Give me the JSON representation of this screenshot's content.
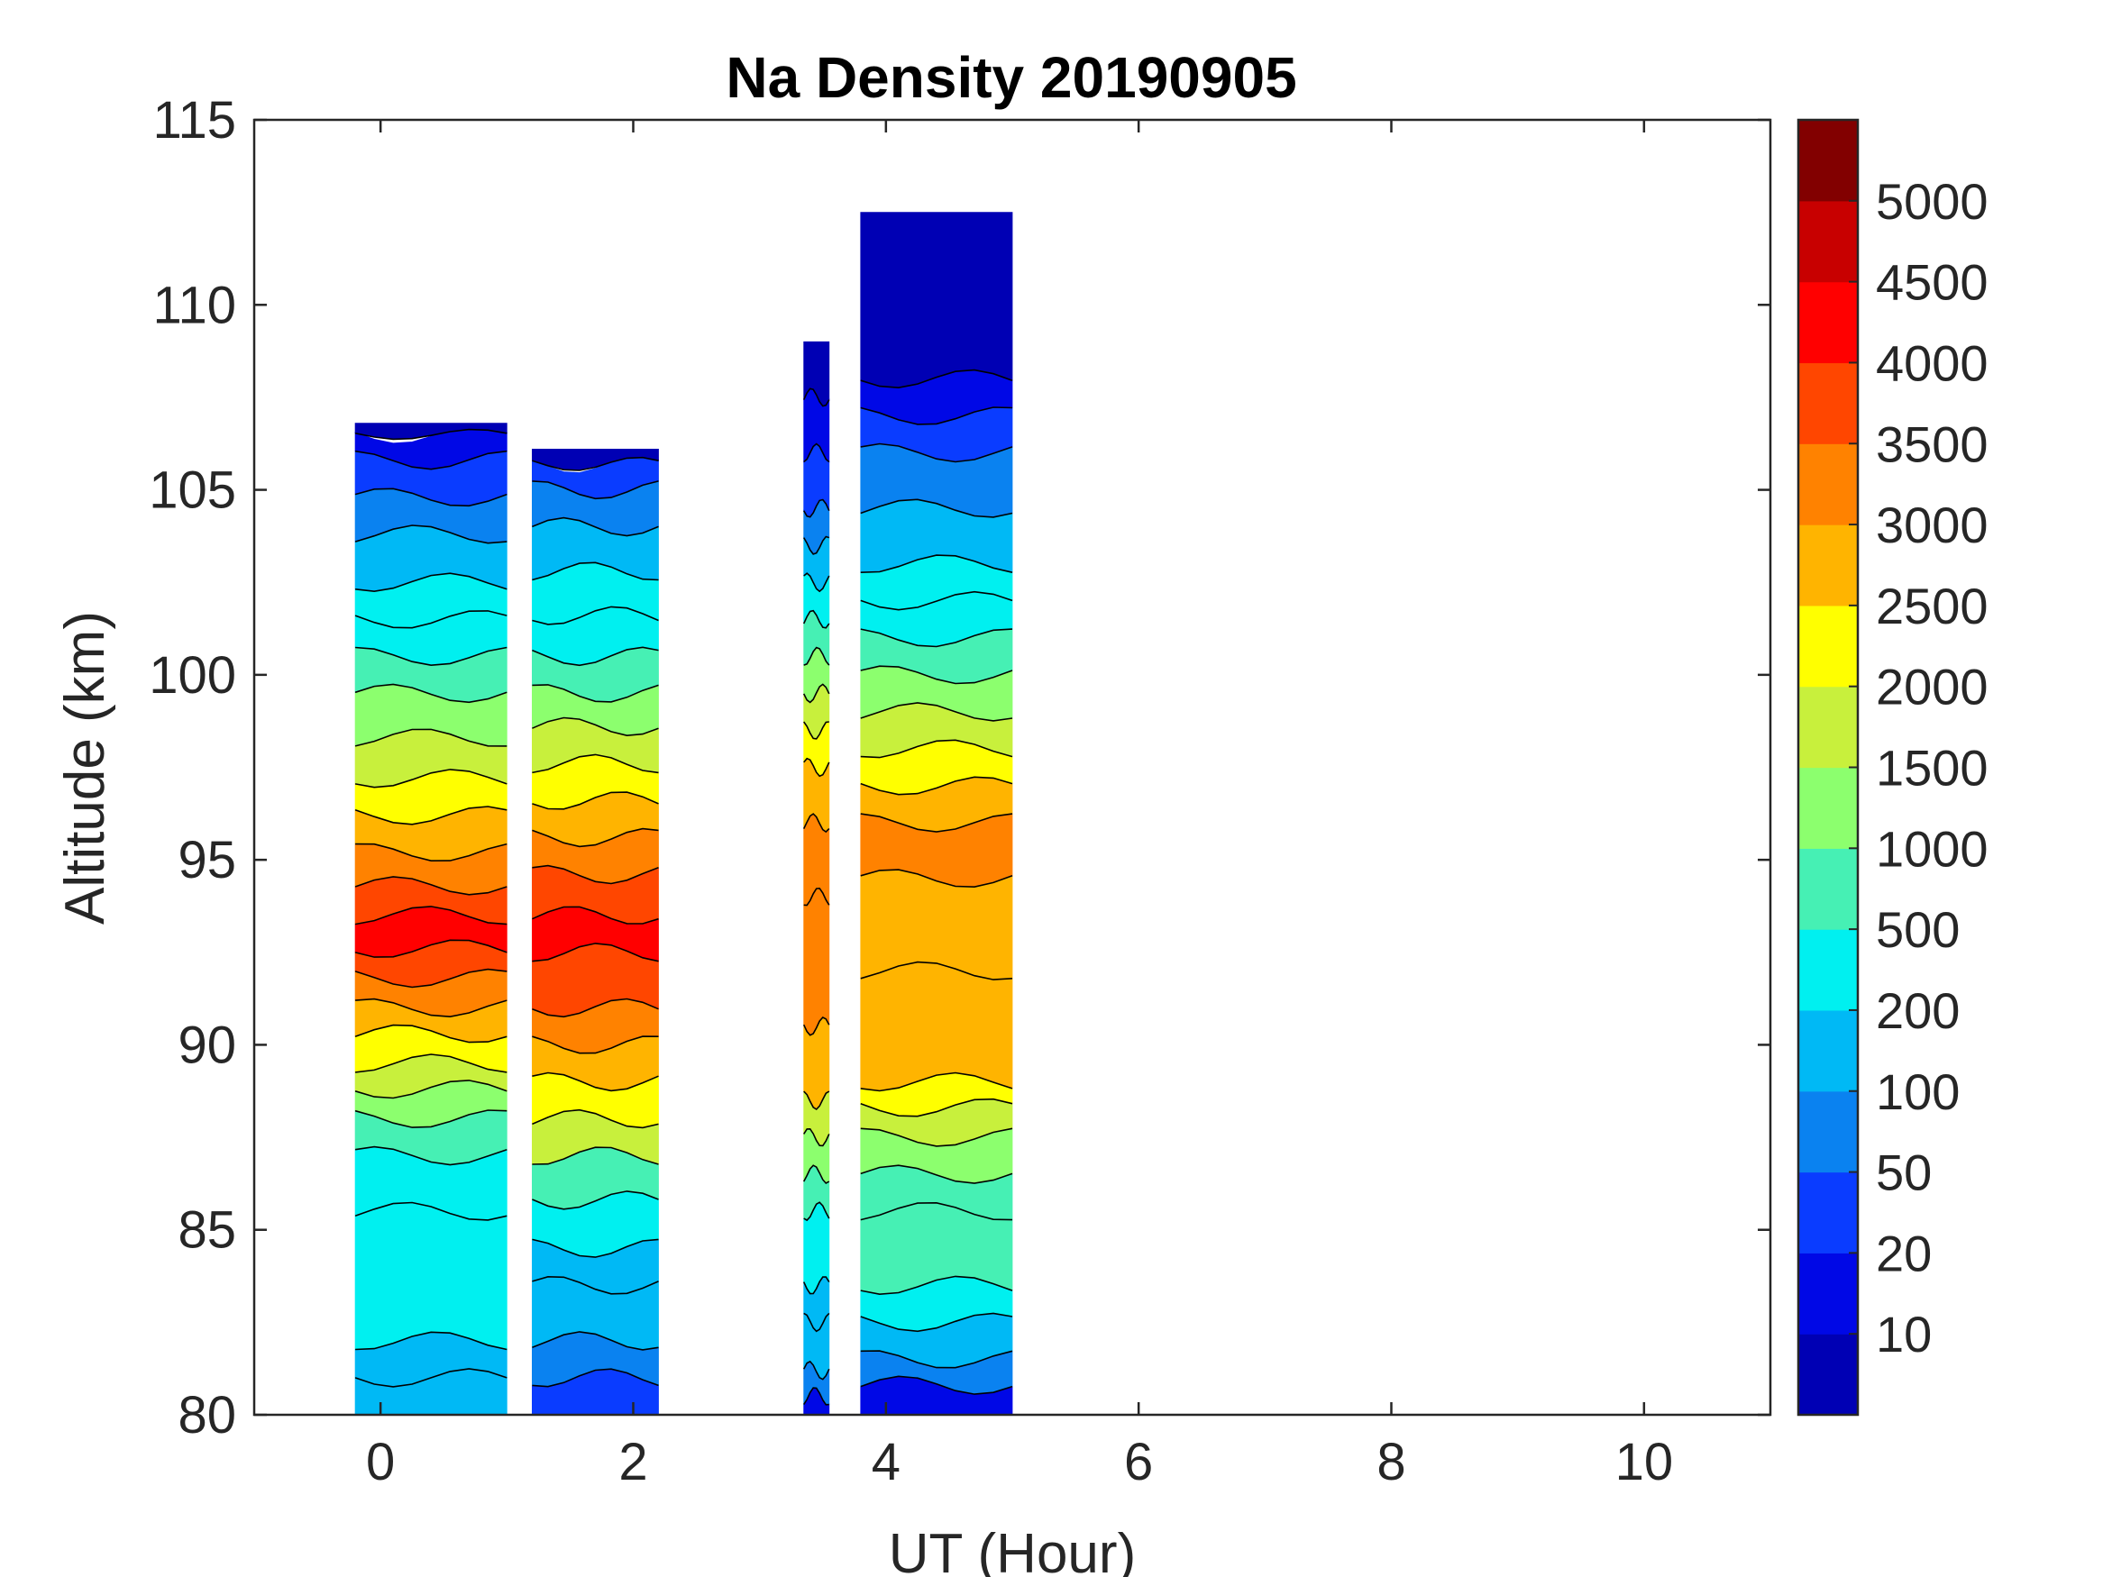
{
  "chart_data": {
    "type": "heatmap",
    "subtype": "filled-contour",
    "title": "Na Density 20190905",
    "xlabel": "UT (Hour)",
    "ylabel": "Altitude (km)",
    "xlim": [
      -1,
      11
    ],
    "ylim": [
      80,
      115
    ],
    "xticks": [
      0,
      2,
      4,
      6,
      8,
      10
    ],
    "yticks": [
      80,
      85,
      90,
      95,
      100,
      105,
      110,
      115
    ],
    "colorbar": {
      "tick_labels": [
        "10",
        "20",
        "50",
        "100",
        "200",
        "500",
        "1000",
        "1500",
        "2000",
        "2500",
        "3000",
        "3500",
        "4000",
        "4500",
        "5000"
      ],
      "colors": [
        "#0000b4",
        "#0008e6",
        "#0a3cff",
        "#0a82f0",
        "#00b9f5",
        "#00f0f0",
        "#46f0b4",
        "#8cff6e",
        "#c8f03c",
        "#ffff00",
        "#ffb400",
        "#ff8200",
        "#ff4600",
        "#ff0000",
        "#c80000",
        "#820000"
      ]
    },
    "segments": [
      {
        "x_range": [
          -0.2,
          1.0
        ],
        "top_km": 106.8,
        "profile": [
          {
            "alt": 80.0,
            "level": 4
          },
          {
            "alt": 81.0,
            "level": 4
          },
          {
            "alt": 82.0,
            "level": 5
          },
          {
            "alt": 85.5,
            "level": 5
          },
          {
            "alt": 87.0,
            "level": 6
          },
          {
            "alt": 88.0,
            "level": 7
          },
          {
            "alt": 88.8,
            "level": 8
          },
          {
            "alt": 89.5,
            "level": 9
          },
          {
            "alt": 90.3,
            "level": 10
          },
          {
            "alt": 91.0,
            "level": 11
          },
          {
            "alt": 91.8,
            "level": 12
          },
          {
            "alt": 92.6,
            "level": 13
          },
          {
            "alt": 93.5,
            "level": 12
          },
          {
            "alt": 94.3,
            "level": 11
          },
          {
            "alt": 95.2,
            "level": 10
          },
          {
            "alt": 96.2,
            "level": 9
          },
          {
            "alt": 97.2,
            "level": 8
          },
          {
            "alt": 98.3,
            "level": 7
          },
          {
            "alt": 99.5,
            "level": 6
          },
          {
            "alt": 100.5,
            "level": 5
          },
          {
            "alt": 101.5,
            "level": 5
          },
          {
            "alt": 102.5,
            "level": 4
          },
          {
            "alt": 103.8,
            "level": 3
          },
          {
            "alt": 104.8,
            "level": 2
          },
          {
            "alt": 105.8,
            "level": 1
          },
          {
            "alt": 106.5,
            "level": 0
          }
        ]
      },
      {
        "x_range": [
          1.2,
          2.2
        ],
        "top_km": 106.1,
        "profile": [
          {
            "alt": 80.0,
            "level": 2
          },
          {
            "alt": 81.0,
            "level": 3
          },
          {
            "alt": 82.0,
            "level": 4
          },
          {
            "alt": 83.5,
            "level": 4
          },
          {
            "alt": 84.5,
            "level": 5
          },
          {
            "alt": 85.8,
            "level": 6
          },
          {
            "alt": 87.0,
            "level": 8
          },
          {
            "alt": 88.0,
            "level": 9
          },
          {
            "alt": 89.0,
            "level": 10
          },
          {
            "alt": 90.0,
            "level": 11
          },
          {
            "alt": 91.0,
            "level": 12
          },
          {
            "alt": 92.5,
            "level": 13
          },
          {
            "alt": 93.5,
            "level": 12
          },
          {
            "alt": 94.6,
            "level": 11
          },
          {
            "alt": 95.6,
            "level": 10
          },
          {
            "alt": 96.6,
            "level": 9
          },
          {
            "alt": 97.6,
            "level": 8
          },
          {
            "alt": 98.6,
            "level": 7
          },
          {
            "alt": 99.5,
            "level": 6
          },
          {
            "alt": 100.5,
            "level": 5
          },
          {
            "alt": 101.6,
            "level": 5
          },
          {
            "alt": 102.8,
            "level": 4
          },
          {
            "alt": 104.0,
            "level": 3
          },
          {
            "alt": 105.0,
            "level": 2
          },
          {
            "alt": 105.7,
            "level": 0
          }
        ]
      },
      {
        "x_range": [
          3.35,
          3.55
        ],
        "top_km": 109.0,
        "profile": [
          {
            "alt": 80.0,
            "level": 1
          },
          {
            "alt": 80.5,
            "level": 3
          },
          {
            "alt": 81.2,
            "level": 4
          },
          {
            "alt": 82.5,
            "level": 4
          },
          {
            "alt": 83.5,
            "level": 5
          },
          {
            "alt": 85.5,
            "level": 6
          },
          {
            "alt": 86.5,
            "level": 7
          },
          {
            "alt": 87.5,
            "level": 8
          },
          {
            "alt": 88.5,
            "level": 10
          },
          {
            "alt": 90.5,
            "level": 11
          },
          {
            "alt": 94.0,
            "level": 11
          },
          {
            "alt": 96.0,
            "level": 10
          },
          {
            "alt": 97.5,
            "level": 9
          },
          {
            "alt": 98.5,
            "level": 8
          },
          {
            "alt": 99.5,
            "level": 7
          },
          {
            "alt": 100.5,
            "level": 6
          },
          {
            "alt": 101.5,
            "level": 5
          },
          {
            "alt": 102.5,
            "level": 4
          },
          {
            "alt": 103.5,
            "level": 3
          },
          {
            "alt": 104.5,
            "level": 2
          },
          {
            "alt": 106.0,
            "level": 1
          },
          {
            "alt": 107.5,
            "level": 0
          }
        ]
      },
      {
        "x_range": [
          3.8,
          5.0
        ],
        "top_km": 112.5,
        "profile": [
          {
            "alt": 80.0,
            "level": 1
          },
          {
            "alt": 80.8,
            "level": 3
          },
          {
            "alt": 81.5,
            "level": 4
          },
          {
            "alt": 82.5,
            "level": 5
          },
          {
            "alt": 83.5,
            "level": 6
          },
          {
            "alt": 85.5,
            "level": 6
          },
          {
            "alt": 86.5,
            "level": 7
          },
          {
            "alt": 87.5,
            "level": 8
          },
          {
            "alt": 88.3,
            "level": 9
          },
          {
            "alt": 89.0,
            "level": 10
          },
          {
            "alt": 92.0,
            "level": 10
          },
          {
            "alt": 94.5,
            "level": 11
          },
          {
            "alt": 96.0,
            "level": 10
          },
          {
            "alt": 97.0,
            "level": 9
          },
          {
            "alt": 98.0,
            "level": 8
          },
          {
            "alt": 99.0,
            "level": 7
          },
          {
            "alt": 100.0,
            "level": 6
          },
          {
            "alt": 101.0,
            "level": 5
          },
          {
            "alt": 102.0,
            "level": 5
          },
          {
            "alt": 103.0,
            "level": 4
          },
          {
            "alt": 104.5,
            "level": 3
          },
          {
            "alt": 106.0,
            "level": 2
          },
          {
            "alt": 107.0,
            "level": 1
          },
          {
            "alt": 108.0,
            "level": 0
          }
        ]
      }
    ],
    "annotations": []
  }
}
